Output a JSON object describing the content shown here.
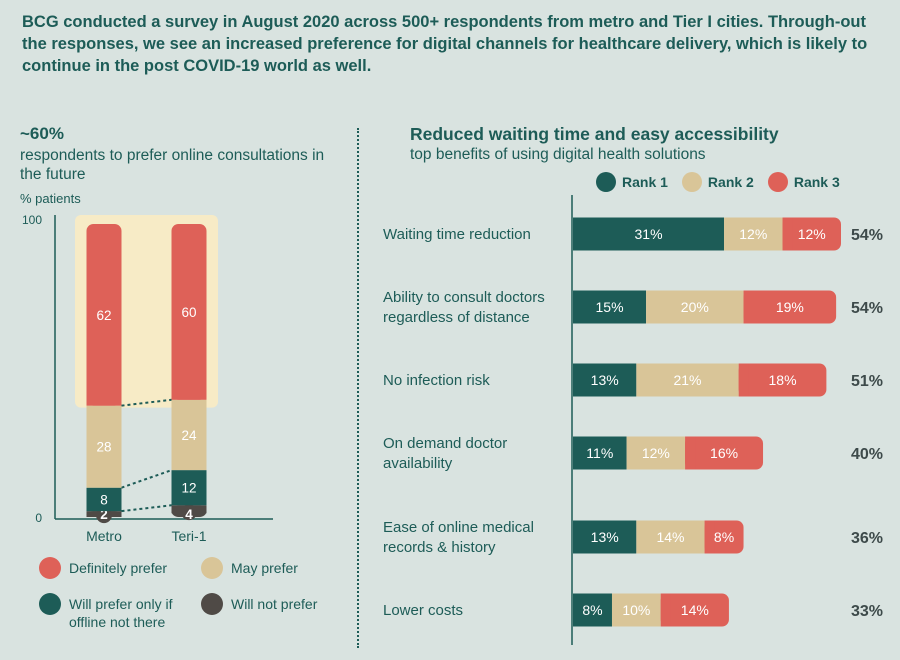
{
  "header": "BCG conducted a survey in August 2020 across 500+ respondents from metro and Tier I cities. Through-out the responses, we see an increased preference for digital channels for healthcare delivery, which is likely to continue in the post COVID-19 world as well.",
  "left_panel": {
    "big_pct": "~60%",
    "subtitle": "respondents to prefer online consultations in the future"
  },
  "right_panel": {
    "title": "Reduced waiting time and easy accessibility",
    "subtitle": "top benefits of using digital health solutions"
  },
  "colors": {
    "teal": "#1d5c57",
    "beige": "#d9c598",
    "red": "#de6158",
    "dark": "#4f4a46",
    "highlight": "#f7ebc6"
  },
  "chart_data": [
    {
      "type": "bar",
      "stacked": true,
      "ylabel": "% patients",
      "ylim": [
        0,
        100
      ],
      "yticks": [
        "0",
        "100"
      ],
      "categories": [
        "Metro",
        "Teri-1"
      ],
      "series": [
        {
          "name": "Will not prefer",
          "values": [
            2,
            4
          ]
        },
        {
          "name": "Will prefer only if offline not there",
          "values": [
            8,
            12
          ]
        },
        {
          "name": "May prefer",
          "values": [
            28,
            24
          ]
        },
        {
          "name": "Definitely prefer",
          "values": [
            62,
            60
          ]
        }
      ],
      "legend": [
        {
          "label": "Definitely prefer",
          "color": "#de6158"
        },
        {
          "label": "May prefer",
          "color": "#d9c598"
        },
        {
          "label": "Will prefer only if offline not there",
          "color": "#1d5c57"
        },
        {
          "label": "Will not prefer",
          "color": "#4f4a46"
        }
      ]
    },
    {
      "type": "bar",
      "orientation": "horizontal",
      "stacked": true,
      "categories": [
        "Waiting time reduction",
        "Ability to consult doctors regardless of distance",
        "No infection risk",
        "On demand doctor availability",
        "Ease of online medical records & history",
        "Lower costs"
      ],
      "series": [
        {
          "name": "Rank 1",
          "values": [
            31,
            15,
            13,
            11,
            13,
            8
          ]
        },
        {
          "name": "Rank 2",
          "values": [
            12,
            20,
            21,
            12,
            14,
            10
          ]
        },
        {
          "name": "Rank 3",
          "values": [
            12,
            19,
            18,
            16,
            8,
            14
          ]
        }
      ],
      "totals": [
        "54%",
        "54%",
        "51%",
        "40%",
        "36%",
        "33%"
      ],
      "legend": [
        {
          "label": "Rank 1",
          "color": "#1d5c57"
        },
        {
          "label": "Rank 2",
          "color": "#d9c598"
        },
        {
          "label": "Rank 3",
          "color": "#de6158"
        }
      ]
    }
  ]
}
